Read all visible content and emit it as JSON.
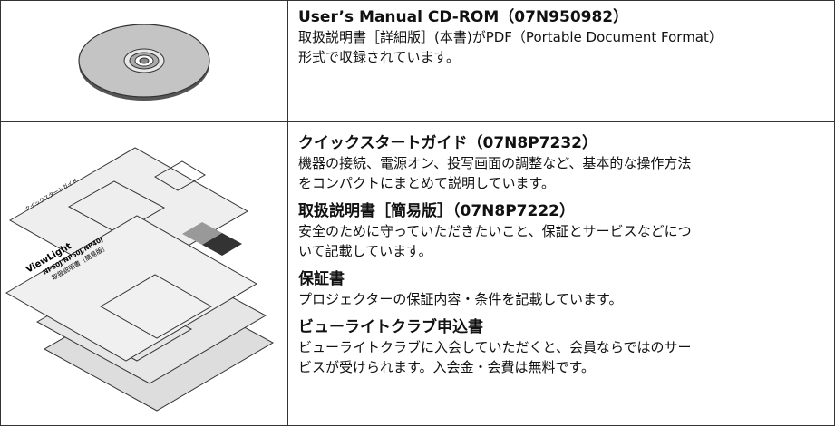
{
  "rows": [
    {
      "items": [
        {
          "title": "User’s Manual CD-ROM（07N950982）",
          "description": [
            "取扱説明書［詳細版］(本書)がPDF（Portable Document Format）",
            "形式で収録されています。"
          ]
        }
      ]
    },
    {
      "illustration": {
        "brand": "ViewLight",
        "models": "NP60J/NP50J/NP40J",
        "booklet": "取扱説明書［簡易版］",
        "guide": "クイックスタートガイド"
      },
      "items": [
        {
          "title": "クイックスタートガイド（07N8P7232）",
          "description": [
            "機器の接続、電源オン、投写画面の調整など、基本的な操作方法",
            "をコンパクトにまとめて説明しています。"
          ]
        },
        {
          "title": "取扱説明書［簡易版］（07N8P7222）",
          "description": [
            "安全のために守っていただきたいこと、保証とサービスなどにつ",
            "いて記載しています。"
          ]
        },
        {
          "title": "保証書",
          "description": [
            "プロジェクターの保証内容・条件を記載しています。"
          ]
        },
        {
          "title": "ビューライトクラブ申込書",
          "description": [
            "ビューライトクラブに入会していただくと、会員ならではのサー",
            "ビスが受けられます。入会金・会費は無料です。"
          ]
        }
      ]
    }
  ]
}
